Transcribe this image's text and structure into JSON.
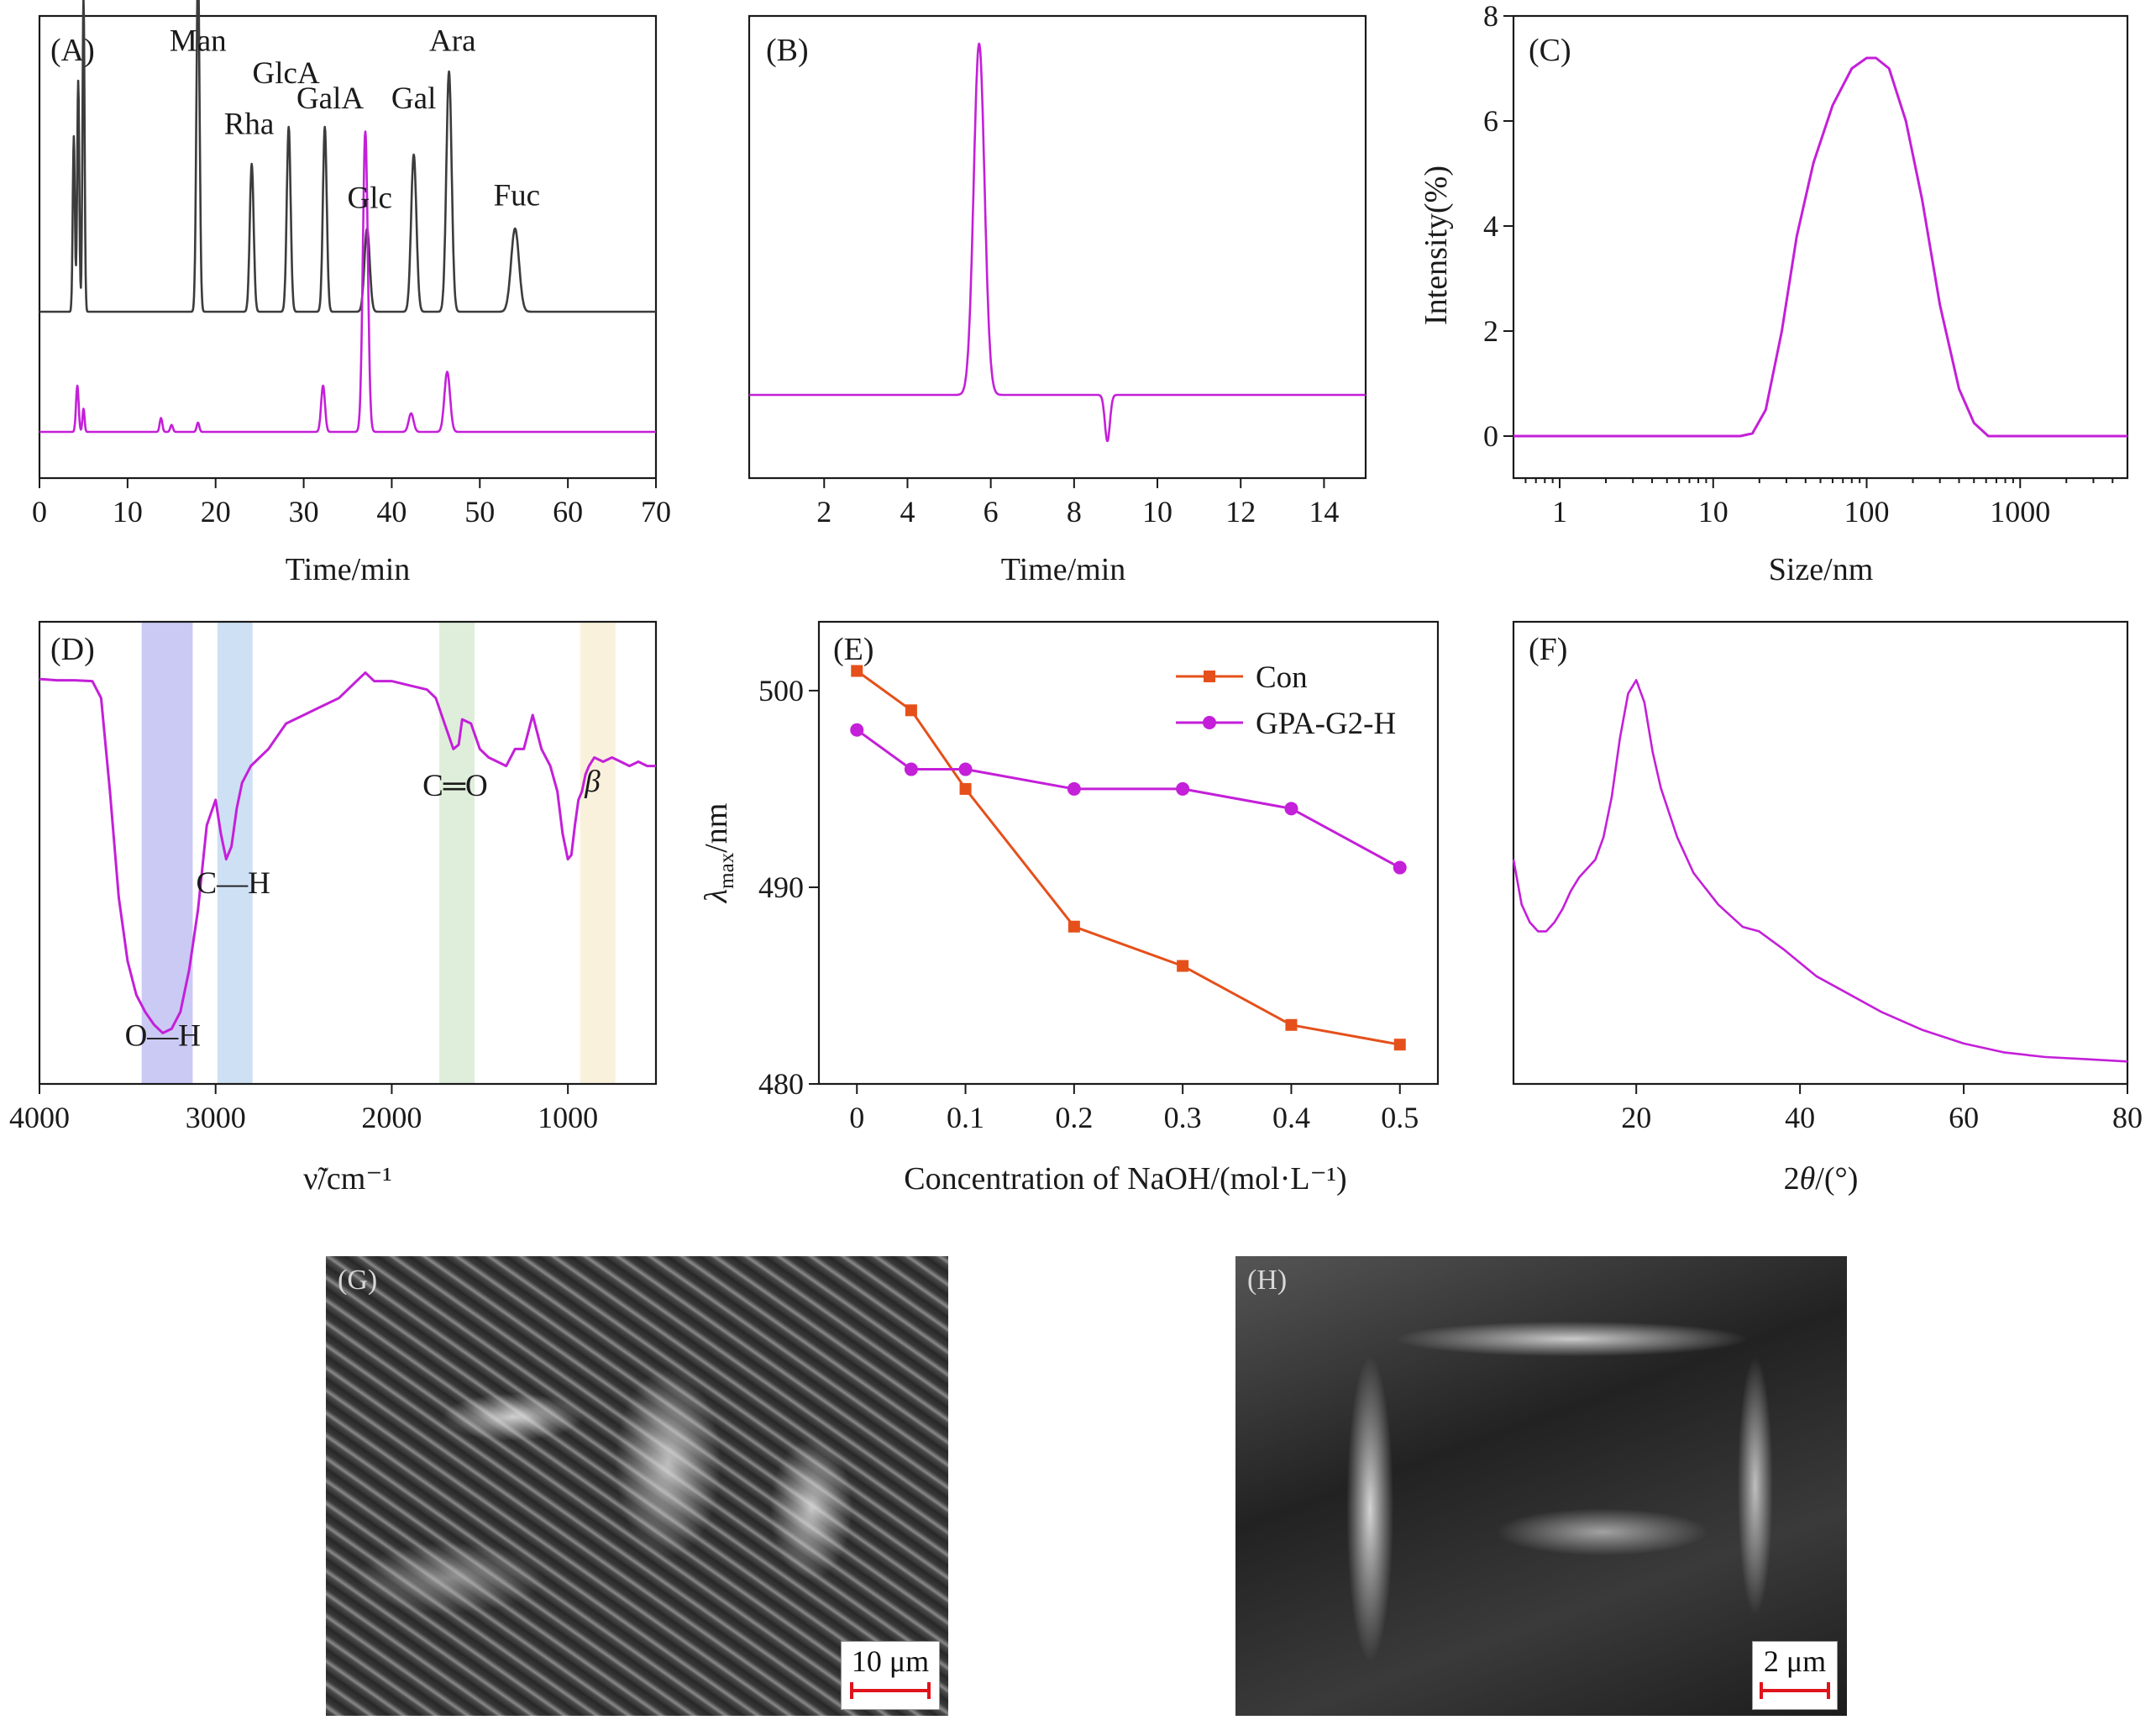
{
  "colors": {
    "magenta": "#c41fd9",
    "gray": "#3c3c3c",
    "orange": "#e5501a",
    "scalebar": "#e0141c"
  },
  "chart_data": [
    {
      "id": "A",
      "panel_label": "(A)",
      "type": "line",
      "xlabel": "Time/min",
      "xlim": [
        0,
        70
      ],
      "xticks": [
        0,
        10,
        20,
        30,
        40,
        50,
        60,
        70
      ],
      "series": [
        {
          "color": "#3c3c3c",
          "baseline": 0.36,
          "peaks": [
            [
              3.9,
              0.38,
              0.12
            ],
            [
              4.4,
              0.5,
              0.12
            ],
            [
              5.0,
              0.68,
              0.12
            ],
            [
              18.0,
              0.75,
              0.18
            ],
            [
              24.1,
              0.32,
              0.22
            ],
            [
              28.3,
              0.4,
              0.22
            ],
            [
              32.4,
              0.4,
              0.22
            ],
            [
              37.2,
              0.18,
              0.3
            ],
            [
              42.5,
              0.34,
              0.3
            ],
            [
              46.5,
              0.52,
              0.3
            ],
            [
              54.0,
              0.18,
              0.45
            ]
          ]
        },
        {
          "color": "#c41fd9",
          "baseline": 0.1,
          "peaks": [
            [
              4.3,
              0.1,
              0.15
            ],
            [
              5.0,
              0.05,
              0.12
            ],
            [
              13.8,
              0.03,
              0.15
            ],
            [
              15.0,
              0.015,
              0.15
            ],
            [
              18.0,
              0.02,
              0.15
            ],
            [
              32.2,
              0.1,
              0.22
            ],
            [
              37.0,
              0.65,
              0.28
            ],
            [
              42.2,
              0.04,
              0.28
            ],
            [
              46.3,
              0.13,
              0.32
            ]
          ]
        }
      ],
      "peak_labels": [
        {
          "text": "Man",
          "x": 18.0,
          "y": 0.925
        },
        {
          "text": "Rha",
          "x": 23.8,
          "y": 0.745
        },
        {
          "text": "GlcA",
          "x": 28.0,
          "y": 0.855
        },
        {
          "text": "GalA",
          "x": 33.0,
          "y": 0.8
        },
        {
          "text": "Glc",
          "x": 37.5,
          "y": 0.585
        },
        {
          "text": "Gal",
          "x": 42.5,
          "y": 0.8
        },
        {
          "text": "Ara",
          "x": 46.9,
          "y": 0.925
        },
        {
          "text": "Fuc",
          "x": 54.2,
          "y": 0.59
        }
      ]
    },
    {
      "id": "B",
      "panel_label": "(B)",
      "type": "line",
      "xlabel": "Time/min",
      "xlim": [
        0.2,
        15
      ],
      "xticks": [
        2,
        4,
        6,
        8,
        10,
        12,
        14
      ],
      "series": [
        {
          "color": "#c41fd9",
          "baseline": 0.18,
          "peaks": [
            [
              5.72,
              0.76,
              0.13
            ],
            [
              8.8,
              -0.1,
              0.06
            ]
          ]
        }
      ]
    },
    {
      "id": "C",
      "panel_label": "(C)",
      "type": "line",
      "xlabel": "Size/nm",
      "ylabel": "Intensity(%)",
      "xscale": "log",
      "xlim": [
        0.5,
        5000
      ],
      "ylim": [
        -0.8,
        8
      ],
      "xticks": [
        1,
        10,
        100,
        1000
      ],
      "yticks": [
        0,
        2,
        4,
        6,
        8
      ],
      "series": [
        {
          "color": "#c41fd9",
          "x": [
            0.5,
            15,
            18,
            22,
            28,
            35,
            45,
            60,
            80,
            100,
            115,
            140,
            180,
            230,
            300,
            400,
            500,
            620,
            700,
            5000
          ],
          "y": [
            0,
            0,
            0.05,
            0.5,
            2.0,
            3.8,
            5.2,
            6.3,
            7.0,
            7.2,
            7.2,
            7.0,
            6.0,
            4.5,
            2.5,
            0.9,
            0.25,
            0,
            0,
            0
          ]
        }
      ]
    },
    {
      "id": "D",
      "panel_label": "(D)",
      "type": "line",
      "xlabel": "ν̃/cm⁻¹",
      "xlim": [
        4000,
        500
      ],
      "xticks": [
        4000,
        3000,
        2000,
        1000
      ],
      "bands": [
        {
          "from": 3420,
          "to": 3130,
          "color": "#b8b8f2"
        },
        {
          "from": 2990,
          "to": 2790,
          "color": "#bcd6f0"
        },
        {
          "from": 1730,
          "to": 1530,
          "color": "#d3e8cf"
        },
        {
          "from": 930,
          "to": 730,
          "color": "#f8ecd0"
        }
      ],
      "series": [
        {
          "color": "#c41fd9",
          "x": [
            4000,
            3900,
            3800,
            3700,
            3650,
            3600,
            3550,
            3500,
            3450,
            3400,
            3350,
            3300,
            3250,
            3200,
            3150,
            3100,
            3050,
            3000,
            2970,
            2940,
            2910,
            2880,
            2850,
            2800,
            2750,
            2700,
            2650,
            2600,
            2500,
            2400,
            2300,
            2200,
            2150,
            2100,
            2000,
            1900,
            1800,
            1750,
            1700,
            1650,
            1620,
            1600,
            1550,
            1500,
            1450,
            1400,
            1350,
            1300,
            1250,
            1200,
            1150,
            1100,
            1060,
            1030,
            1000,
            980,
            960,
            940,
            920,
            900,
            880,
            850,
            800,
            750,
            700,
            650,
            600,
            550,
            500
          ],
          "y": [
            0.865,
            0.862,
            0.862,
            0.86,
            0.82,
            0.6,
            0.35,
            0.2,
            0.12,
            0.08,
            0.05,
            0.03,
            0.04,
            0.08,
            0.18,
            0.32,
            0.52,
            0.58,
            0.5,
            0.44,
            0.47,
            0.56,
            0.62,
            0.66,
            0.68,
            0.7,
            0.73,
            0.76,
            0.78,
            0.8,
            0.82,
            0.86,
            0.88,
            0.86,
            0.86,
            0.85,
            0.84,
            0.82,
            0.76,
            0.7,
            0.71,
            0.77,
            0.76,
            0.7,
            0.68,
            0.67,
            0.66,
            0.7,
            0.7,
            0.78,
            0.7,
            0.66,
            0.6,
            0.5,
            0.44,
            0.45,
            0.52,
            0.58,
            0.6,
            0.64,
            0.66,
            0.68,
            0.67,
            0.68,
            0.67,
            0.66,
            0.67,
            0.66,
            0.66
          ]
        }
      ],
      "annotations": [
        {
          "text": "O—H",
          "x": 3300,
          "y": 0.0
        },
        {
          "text": "C—H",
          "x": 2900,
          "y": 0.36
        },
        {
          "text": "C═O",
          "x": 1640,
          "y": 0.59
        },
        {
          "text": "β",
          "x": 860,
          "y": 0.6
        }
      ]
    },
    {
      "id": "E",
      "panel_label": "(E)",
      "type": "line",
      "xlabel": "Concentration of NaOH/(mol·L⁻¹)",
      "ylabel": "λmax/nm",
      "xlim": [
        -0.035,
        0.535
      ],
      "ylim": [
        480,
        503.5
      ],
      "xticks": [
        0,
        0.1,
        0.2,
        0.3,
        0.4,
        0.5
      ],
      "yticks": [
        480,
        490,
        500
      ],
      "legend_position": "top-right",
      "series": [
        {
          "name": "Con",
          "color": "#e5501a",
          "marker": "square",
          "x": [
            0,
            0.05,
            0.1,
            0.2,
            0.3,
            0.4,
            0.5
          ],
          "y": [
            501,
            499,
            495,
            488,
            486,
            483,
            482
          ]
        },
        {
          "name": "GPA-G2-H",
          "color": "#c41fd9",
          "marker": "circle",
          "x": [
            0,
            0.05,
            0.1,
            0.2,
            0.3,
            0.4,
            0.5
          ],
          "y": [
            498,
            496,
            496,
            495,
            495,
            494,
            491
          ]
        }
      ]
    },
    {
      "id": "F",
      "panel_label": "(F)",
      "type": "line",
      "xlabel": "2θ/(°)",
      "xlim": [
        5,
        80
      ],
      "xticks": [
        20,
        40,
        60,
        80
      ],
      "series": [
        {
          "color": "#c41fd9",
          "x": [
            5,
            6,
            7,
            8,
            9,
            10,
            11,
            12,
            13,
            14,
            15,
            16,
            17,
            18,
            19,
            20,
            21,
            22,
            23,
            25,
            27,
            30,
            33,
            35,
            38,
            42,
            46,
            50,
            55,
            60,
            65,
            70,
            75,
            80
          ],
          "y": [
            0.5,
            0.4,
            0.36,
            0.34,
            0.34,
            0.36,
            0.39,
            0.43,
            0.46,
            0.48,
            0.5,
            0.55,
            0.64,
            0.77,
            0.87,
            0.9,
            0.85,
            0.74,
            0.66,
            0.55,
            0.47,
            0.4,
            0.35,
            0.34,
            0.3,
            0.24,
            0.2,
            0.16,
            0.12,
            0.09,
            0.07,
            0.06,
            0.055,
            0.05
          ]
        }
      ]
    }
  ],
  "images": {
    "G": {
      "panel_label": "(G)",
      "scalebar": "10 μm"
    },
    "H": {
      "panel_label": "(H)",
      "scalebar": "2 μm"
    }
  }
}
